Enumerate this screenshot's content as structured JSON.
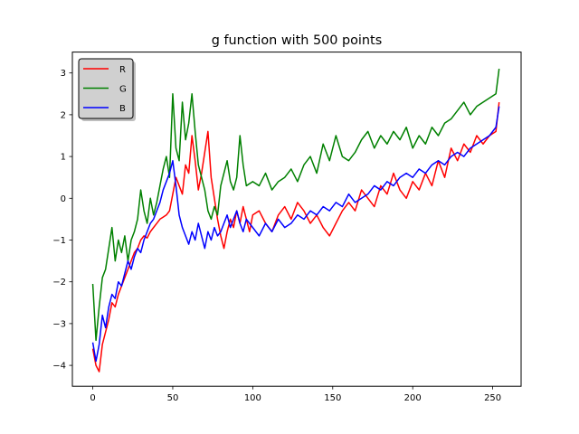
{
  "chart_data": {
    "type": "line",
    "title": "g function with 500 points",
    "xlabel": "",
    "ylabel": "",
    "xlim": [
      -12.75,
      267.75
    ],
    "ylim": [
      -4.5,
      3.5
    ],
    "xticks": [
      0,
      50,
      100,
      150,
      200,
      250
    ],
    "yticks": [
      -4,
      -3,
      -2,
      -1,
      0,
      1,
      2,
      3
    ],
    "xtick_labels": [
      "0",
      "50",
      "100",
      "150",
      "200",
      "250"
    ],
    "ytick_labels": [
      "−4",
      "−3",
      "−2",
      "−1",
      "0",
      "1",
      "2",
      "3"
    ],
    "legend_position": "top-left",
    "grid": false,
    "series": [
      {
        "name": "R",
        "color": "#ff0000",
        "points": [
          [
            0,
            -3.6
          ],
          [
            2,
            -4.0
          ],
          [
            4,
            -4.15
          ],
          [
            6,
            -3.5
          ],
          [
            8,
            -3.2
          ],
          [
            10,
            -2.9
          ],
          [
            12,
            -2.5
          ],
          [
            14,
            -2.6
          ],
          [
            16,
            -2.3
          ],
          [
            18,
            -2.1
          ],
          [
            20,
            -1.9
          ],
          [
            22,
            -1.7
          ],
          [
            24,
            -1.5
          ],
          [
            26,
            -1.3
          ],
          [
            28,
            -1.2
          ],
          [
            30,
            -1.0
          ],
          [
            32,
            -0.9
          ],
          [
            34,
            -0.95
          ],
          [
            36,
            -0.8
          ],
          [
            38,
            -0.7
          ],
          [
            40,
            -0.6
          ],
          [
            42,
            -0.5
          ],
          [
            44,
            -0.45
          ],
          [
            46,
            -0.4
          ],
          [
            48,
            -0.3
          ],
          [
            50,
            0.1
          ],
          [
            52,
            0.5
          ],
          [
            54,
            0.3
          ],
          [
            56,
            0.1
          ],
          [
            58,
            0.8
          ],
          [
            60,
            0.6
          ],
          [
            62,
            1.5
          ],
          [
            64,
            0.9
          ],
          [
            66,
            0.2
          ],
          [
            68,
            0.6
          ],
          [
            70,
            1.1
          ],
          [
            72,
            1.6
          ],
          [
            74,
            0.5
          ],
          [
            76,
            0.0
          ],
          [
            78,
            -0.5
          ],
          [
            80,
            -0.9
          ],
          [
            82,
            -1.2
          ],
          [
            84,
            -0.8
          ],
          [
            86,
            -0.5
          ],
          [
            88,
            -0.7
          ],
          [
            90,
            -0.3
          ],
          [
            92,
            -0.6
          ],
          [
            94,
            -0.2
          ],
          [
            96,
            -0.5
          ],
          [
            98,
            -0.8
          ],
          [
            100,
            -0.4
          ],
          [
            104,
            -0.3
          ],
          [
            108,
            -0.6
          ],
          [
            112,
            -0.8
          ],
          [
            116,
            -0.4
          ],
          [
            120,
            -0.2
          ],
          [
            124,
            -0.5
          ],
          [
            128,
            -0.1
          ],
          [
            132,
            -0.3
          ],
          [
            136,
            -0.6
          ],
          [
            140,
            -0.4
          ],
          [
            144,
            -0.7
          ],
          [
            148,
            -0.9
          ],
          [
            152,
            -0.6
          ],
          [
            156,
            -0.3
          ],
          [
            160,
            -0.1
          ],
          [
            164,
            -0.3
          ],
          [
            168,
            0.2
          ],
          [
            172,
            0.0
          ],
          [
            176,
            -0.2
          ],
          [
            180,
            0.3
          ],
          [
            184,
            0.1
          ],
          [
            188,
            0.6
          ],
          [
            192,
            0.2
          ],
          [
            196,
            0.0
          ],
          [
            200,
            0.4
          ],
          [
            204,
            0.2
          ],
          [
            208,
            0.6
          ],
          [
            212,
            0.3
          ],
          [
            216,
            0.9
          ],
          [
            220,
            0.5
          ],
          [
            224,
            1.2
          ],
          [
            228,
            0.9
          ],
          [
            232,
            1.3
          ],
          [
            236,
            1.1
          ],
          [
            240,
            1.5
          ],
          [
            244,
            1.3
          ],
          [
            248,
            1.5
          ],
          [
            252,
            1.6
          ],
          [
            254,
            2.3
          ]
        ]
      },
      {
        "name": "G",
        "color": "#008000",
        "points": [
          [
            0,
            -2.05
          ],
          [
            2,
            -3.4
          ],
          [
            4,
            -2.6
          ],
          [
            6,
            -1.9
          ],
          [
            8,
            -1.7
          ],
          [
            10,
            -1.2
          ],
          [
            12,
            -0.7
          ],
          [
            14,
            -1.5
          ],
          [
            16,
            -1.0
          ],
          [
            18,
            -1.3
          ],
          [
            20,
            -0.9
          ],
          [
            22,
            -1.5
          ],
          [
            24,
            -1.0
          ],
          [
            26,
            -0.8
          ],
          [
            28,
            -0.5
          ],
          [
            30,
            0.2
          ],
          [
            32,
            -0.3
          ],
          [
            34,
            -0.6
          ],
          [
            36,
            0.0
          ],
          [
            38,
            -0.4
          ],
          [
            40,
            -0.1
          ],
          [
            42,
            0.3
          ],
          [
            44,
            0.7
          ],
          [
            46,
            1.0
          ],
          [
            48,
            0.5
          ],
          [
            50,
            2.5
          ],
          [
            52,
            1.2
          ],
          [
            54,
            0.9
          ],
          [
            56,
            2.3
          ],
          [
            58,
            1.4
          ],
          [
            60,
            1.8
          ],
          [
            62,
            2.5
          ],
          [
            64,
            1.6
          ],
          [
            66,
            0.8
          ],
          [
            68,
            0.5
          ],
          [
            70,
            0.2
          ],
          [
            72,
            -0.3
          ],
          [
            74,
            -0.5
          ],
          [
            76,
            -0.2
          ],
          [
            78,
            -0.4
          ],
          [
            80,
            0.3
          ],
          [
            82,
            0.6
          ],
          [
            84,
            0.9
          ],
          [
            86,
            0.4
          ],
          [
            88,
            0.2
          ],
          [
            90,
            0.5
          ],
          [
            92,
            1.5
          ],
          [
            94,
            0.8
          ],
          [
            96,
            0.3
          ],
          [
            100,
            0.4
          ],
          [
            104,
            0.3
          ],
          [
            108,
            0.6
          ],
          [
            112,
            0.2
          ],
          [
            116,
            0.4
          ],
          [
            120,
            0.5
          ],
          [
            124,
            0.7
          ],
          [
            128,
            0.4
          ],
          [
            132,
            0.8
          ],
          [
            136,
            1.0
          ],
          [
            140,
            0.6
          ],
          [
            144,
            1.3
          ],
          [
            148,
            0.9
          ],
          [
            152,
            1.5
          ],
          [
            156,
            1.0
          ],
          [
            160,
            0.9
          ],
          [
            164,
            1.1
          ],
          [
            168,
            1.4
          ],
          [
            172,
            1.6
          ],
          [
            176,
            1.2
          ],
          [
            180,
            1.5
          ],
          [
            184,
            1.3
          ],
          [
            188,
            1.6
          ],
          [
            192,
            1.4
          ],
          [
            196,
            1.7
          ],
          [
            200,
            1.2
          ],
          [
            204,
            1.5
          ],
          [
            208,
            1.3
          ],
          [
            212,
            1.7
          ],
          [
            216,
            1.5
          ],
          [
            220,
            1.8
          ],
          [
            224,
            1.9
          ],
          [
            228,
            2.1
          ],
          [
            232,
            2.3
          ],
          [
            236,
            2.0
          ],
          [
            240,
            2.2
          ],
          [
            244,
            2.3
          ],
          [
            248,
            2.4
          ],
          [
            252,
            2.5
          ],
          [
            254,
            3.1
          ]
        ]
      },
      {
        "name": "B",
        "color": "#0000ff",
        "points": [
          [
            0,
            -3.45
          ],
          [
            2,
            -3.9
          ],
          [
            4,
            -3.5
          ],
          [
            6,
            -2.8
          ],
          [
            8,
            -3.1
          ],
          [
            10,
            -2.6
          ],
          [
            12,
            -2.3
          ],
          [
            14,
            -2.4
          ],
          [
            16,
            -2.0
          ],
          [
            18,
            -2.1
          ],
          [
            20,
            -1.8
          ],
          [
            22,
            -1.5
          ],
          [
            24,
            -1.7
          ],
          [
            26,
            -1.4
          ],
          [
            28,
            -1.2
          ],
          [
            30,
            -1.3
          ],
          [
            32,
            -1.0
          ],
          [
            34,
            -0.8
          ],
          [
            36,
            -0.6
          ],
          [
            38,
            -0.5
          ],
          [
            40,
            -0.3
          ],
          [
            42,
            -0.1
          ],
          [
            44,
            0.2
          ],
          [
            46,
            0.4
          ],
          [
            48,
            0.6
          ],
          [
            50,
            0.9
          ],
          [
            52,
            0.3
          ],
          [
            54,
            -0.4
          ],
          [
            56,
            -0.7
          ],
          [
            58,
            -0.9
          ],
          [
            60,
            -1.1
          ],
          [
            62,
            -0.8
          ],
          [
            64,
            -1.0
          ],
          [
            66,
            -0.6
          ],
          [
            68,
            -0.9
          ],
          [
            70,
            -1.2
          ],
          [
            72,
            -0.8
          ],
          [
            74,
            -1.0
          ],
          [
            76,
            -0.7
          ],
          [
            78,
            -0.9
          ],
          [
            80,
            -0.8
          ],
          [
            82,
            -0.6
          ],
          [
            84,
            -0.4
          ],
          [
            86,
            -0.7
          ],
          [
            88,
            -0.5
          ],
          [
            90,
            -0.3
          ],
          [
            92,
            -0.6
          ],
          [
            94,
            -0.8
          ],
          [
            96,
            -0.5
          ],
          [
            100,
            -0.7
          ],
          [
            104,
            -0.9
          ],
          [
            108,
            -0.6
          ],
          [
            112,
            -0.8
          ],
          [
            116,
            -0.5
          ],
          [
            120,
            -0.7
          ],
          [
            124,
            -0.6
          ],
          [
            128,
            -0.4
          ],
          [
            132,
            -0.5
          ],
          [
            136,
            -0.3
          ],
          [
            140,
            -0.4
          ],
          [
            144,
            -0.2
          ],
          [
            148,
            -0.3
          ],
          [
            152,
            -0.1
          ],
          [
            156,
            -0.2
          ],
          [
            160,
            0.1
          ],
          [
            164,
            -0.1
          ],
          [
            168,
            0.0
          ],
          [
            172,
            0.1
          ],
          [
            176,
            0.3
          ],
          [
            180,
            0.2
          ],
          [
            184,
            0.4
          ],
          [
            188,
            0.3
          ],
          [
            192,
            0.5
          ],
          [
            196,
            0.6
          ],
          [
            200,
            0.5
          ],
          [
            204,
            0.7
          ],
          [
            208,
            0.6
          ],
          [
            212,
            0.8
          ],
          [
            216,
            0.9
          ],
          [
            220,
            0.8
          ],
          [
            224,
            1.0
          ],
          [
            228,
            1.1
          ],
          [
            232,
            1.0
          ],
          [
            236,
            1.2
          ],
          [
            240,
            1.3
          ],
          [
            244,
            1.4
          ],
          [
            248,
            1.5
          ],
          [
            252,
            1.7
          ],
          [
            254,
            2.2
          ]
        ]
      }
    ]
  }
}
